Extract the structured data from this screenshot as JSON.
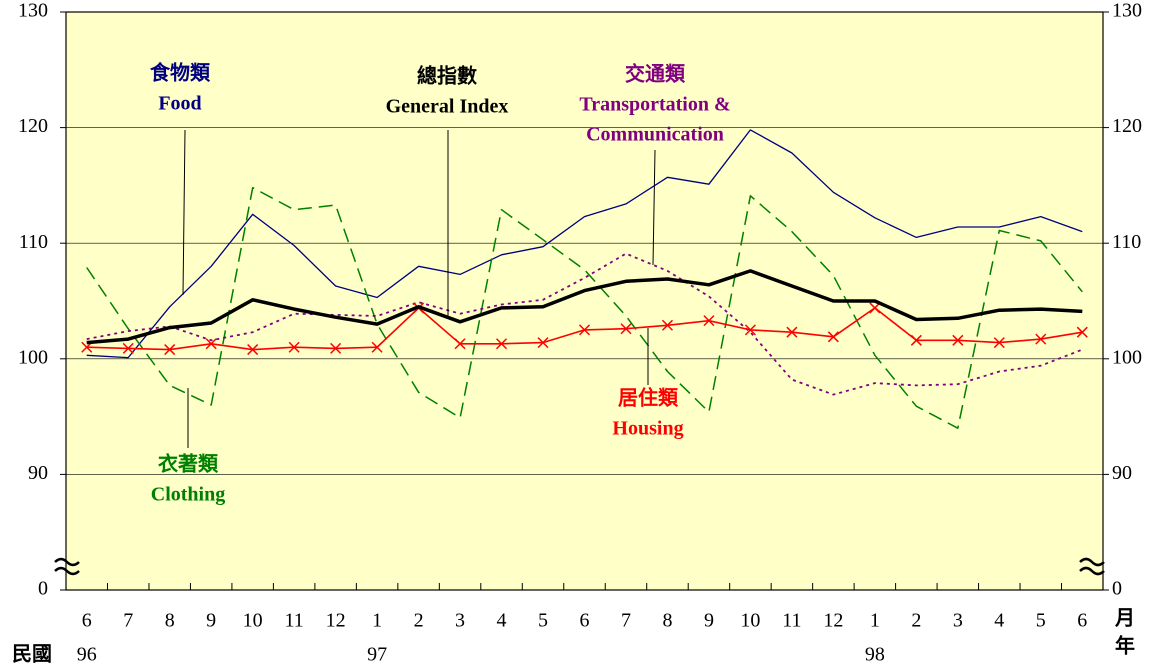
{
  "chart_data": {
    "type": "line",
    "categories": [
      "6",
      "7",
      "8",
      "9",
      "10",
      "11",
      "12",
      "1",
      "2",
      "3",
      "4",
      "5",
      "6",
      "7",
      "8",
      "9",
      "10",
      "11",
      "12",
      "1",
      "2",
      "3",
      "4",
      "5",
      "6"
    ],
    "years": [
      "96",
      null,
      null,
      null,
      null,
      null,
      null,
      "97",
      null,
      null,
      null,
      null,
      null,
      null,
      null,
      null,
      null,
      null,
      null,
      "98",
      null,
      null,
      null,
      null,
      null
    ],
    "year_prefix": "民國",
    "month_unit": "月",
    "year_unit": "年",
    "ylim": [
      0,
      130
    ],
    "yticks": [
      0,
      90,
      100,
      110,
      120,
      130
    ],
    "axis_break": true,
    "grid": true,
    "background": "#ffffc8",
    "series": [
      {
        "label": [
          "食物類",
          "Food"
        ],
        "color": "#000080",
        "line_style": "solid",
        "width": 1.3,
        "values": [
          100.3,
          100.1,
          104.5,
          108.0,
          112.5,
          109.8,
          106.3,
          105.3,
          108.0,
          107.3,
          109.0,
          109.7,
          112.3,
          113.4,
          115.7,
          115.1,
          119.8,
          117.8,
          114.4,
          112.2,
          110.5,
          111.4,
          111.4,
          112.3,
          111.0
        ]
      },
      {
        "label": [
          "衣著類",
          "Clothing"
        ],
        "color": "#008000",
        "line_style": "dashed",
        "width": 1.5,
        "values": [
          107.9,
          102.6,
          97.7,
          96.0,
          114.8,
          112.9,
          113.3,
          103.0,
          97.1,
          94.9,
          112.9,
          110.3,
          107.7,
          103.7,
          98.9,
          95.4,
          114.1,
          111.0,
          107.2,
          100.3,
          95.9,
          94.0,
          111.1,
          110.2,
          105.8
        ]
      },
      {
        "label": [
          "交通類",
          "Transportation &",
          "Communication"
        ],
        "color": "#800080",
        "line_style": "dotted",
        "width": 1.8,
        "values": [
          101.7,
          102.4,
          102.8,
          101.6,
          102.3,
          103.9,
          103.8,
          103.7,
          104.9,
          103.9,
          104.7,
          105.1,
          107.0,
          109.1,
          107.6,
          105.4,
          102.3,
          98.2,
          96.9,
          97.9,
          97.7,
          97.8,
          98.9,
          99.4,
          100.8
        ]
      },
      {
        "label": [
          "居住類",
          "Housing"
        ],
        "color": "#ff0000",
        "line_style": "solid",
        "width": 1.6,
        "marker": "x",
        "values": [
          101.0,
          100.9,
          100.8,
          101.3,
          100.8,
          101.0,
          100.9,
          101.0,
          104.4,
          101.3,
          101.3,
          101.4,
          102.5,
          102.6,
          102.9,
          103.3,
          102.5,
          102.3,
          101.9,
          104.4,
          101.6,
          101.6,
          101.4,
          101.7,
          102.3
        ]
      },
      {
        "label": [
          "總指數",
          "General Index"
        ],
        "color": "#000000",
        "line_style": "solid",
        "width": 3.5,
        "values": [
          101.4,
          101.7,
          102.7,
          103.1,
          105.1,
          104.3,
          103.6,
          103.0,
          104.5,
          103.2,
          104.4,
          104.5,
          105.9,
          106.7,
          106.9,
          106.4,
          107.6,
          106.3,
          105.0,
          105.0,
          103.4,
          103.5,
          104.2,
          104.3,
          104.1
        ]
      }
    ]
  }
}
